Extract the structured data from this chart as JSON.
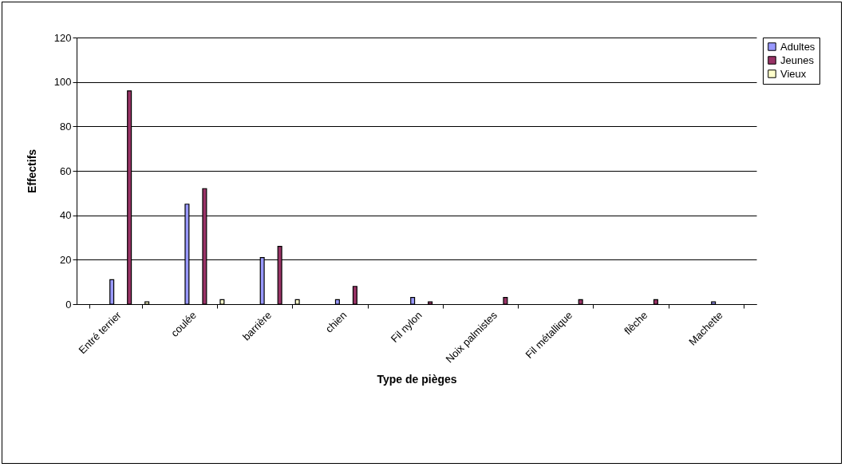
{
  "chart_data": {
    "type": "bar",
    "xlabel": "Type de pièges",
    "ylabel": "Effectifs",
    "categories": [
      "Entré terrier",
      "coulée",
      "barrière",
      "chien",
      "Fil nylon",
      "Noix palmistes",
      "Fil métallique",
      "flèche",
      "Machette"
    ],
    "series": [
      {
        "name": "Adultes",
        "color": "#9999ff",
        "values": [
          11,
          45,
          21,
          2,
          3,
          null,
          null,
          null,
          1
        ]
      },
      {
        "name": "Jeunes",
        "color": "#993366",
        "values": [
          96,
          52,
          26,
          8,
          1,
          3,
          2,
          2,
          null
        ]
      },
      {
        "name": "Vieux",
        "color": "#ffffcc",
        "values": [
          1,
          2,
          2,
          null,
          null,
          null,
          null,
          null,
          null
        ]
      }
    ],
    "ylim": [
      0,
      120
    ],
    "yticks": [
      0,
      20,
      40,
      60,
      80,
      100,
      120
    ],
    "grid": "y",
    "legend": "right"
  }
}
